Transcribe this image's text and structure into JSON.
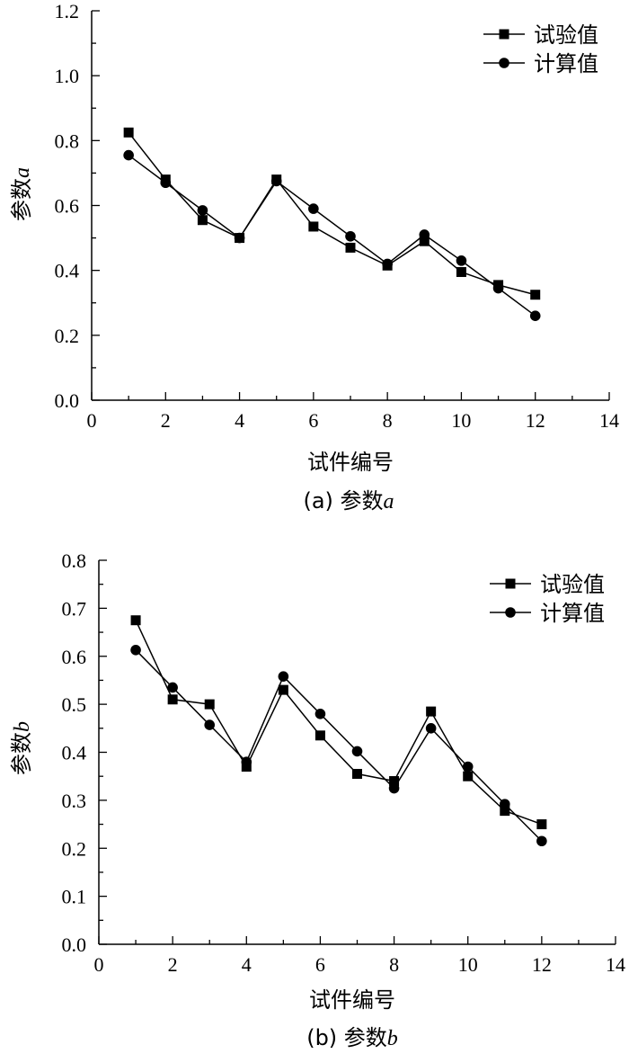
{
  "chart_data": [
    {
      "type": "line",
      "caption_prefix": "(a) 参数",
      "caption_var": "a",
      "xlabel": "试件编号",
      "ylabel_prefix": "参数",
      "ylabel_var": "a",
      "xlim": [
        0,
        14
      ],
      "ylim": [
        0.0,
        1.2
      ],
      "xticks": [
        "0",
        "2",
        "4",
        "6",
        "8",
        "10",
        "12",
        "14"
      ],
      "yticks": [
        "0.0",
        "0.2",
        "0.4",
        "0.6",
        "0.8",
        "1.0",
        "1.2"
      ],
      "legend_position": "top-right",
      "x": [
        1,
        2,
        3,
        4,
        5,
        6,
        7,
        8,
        9,
        10,
        11,
        12
      ],
      "series": [
        {
          "name": "试验值",
          "marker": "square",
          "values": [
            0.825,
            0.68,
            0.555,
            0.5,
            0.68,
            0.535,
            0.47,
            0.415,
            0.49,
            0.395,
            0.355,
            0.325
          ]
        },
        {
          "name": "计算值",
          "marker": "circle",
          "values": [
            0.755,
            0.67,
            0.585,
            0.5,
            0.675,
            0.59,
            0.505,
            0.42,
            0.51,
            0.43,
            0.345,
            0.26
          ]
        }
      ]
    },
    {
      "type": "line",
      "caption_prefix": "(b) 参数",
      "caption_var": "b",
      "xlabel": "试件编号",
      "ylabel_prefix": "参数",
      "ylabel_var": "b",
      "xlim": [
        0,
        14
      ],
      "ylim": [
        0.0,
        0.8
      ],
      "xticks": [
        "0",
        "2",
        "4",
        "6",
        "8",
        "10",
        "12",
        "14"
      ],
      "yticks": [
        "0.0",
        "0.1",
        "0.2",
        "0.3",
        "0.4",
        "0.5",
        "0.6",
        "0.7",
        "0.8"
      ],
      "legend_position": "top-right",
      "x": [
        1,
        2,
        3,
        4,
        5,
        6,
        7,
        8,
        9,
        10,
        11,
        12
      ],
      "series": [
        {
          "name": "试验值",
          "marker": "square",
          "values": [
            0.675,
            0.51,
            0.5,
            0.37,
            0.53,
            0.435,
            0.355,
            0.34,
            0.485,
            0.35,
            0.278,
            0.25
          ]
        },
        {
          "name": "计算值",
          "marker": "circle",
          "values": [
            0.613,
            0.535,
            0.457,
            0.38,
            0.558,
            0.48,
            0.402,
            0.325,
            0.45,
            0.37,
            0.292,
            0.215
          ]
        }
      ]
    }
  ]
}
